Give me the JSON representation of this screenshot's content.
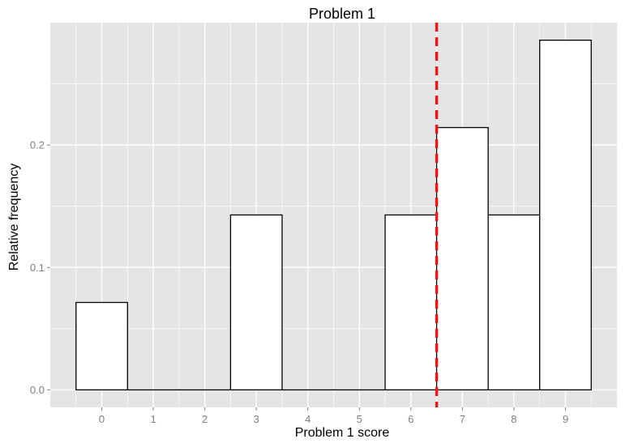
{
  "chart_data": {
    "type": "bar",
    "title": "Problem 1",
    "xlabel": "Problem 1 score",
    "ylabel": "Relative frequency",
    "categories": [
      "0",
      "1",
      "2",
      "3",
      "4",
      "5",
      "6",
      "7",
      "8",
      "9"
    ],
    "values": [
      0.0714,
      0,
      0,
      0.1429,
      0,
      0,
      0.1429,
      0.2143,
      0.1429,
      0.2857
    ],
    "yticks": [
      "0.0",
      "0.1",
      "0.2"
    ],
    "ytick_values": [
      0,
      0.1,
      0.2
    ],
    "xlim": [
      -1,
      10
    ],
    "ylim": [
      -0.0143,
      0.3
    ],
    "grid": true,
    "reference_line": {
      "x": 6.5,
      "style": "dashed",
      "color": "#e41a1c"
    },
    "colors": {
      "panel": "#e5e5e5",
      "grid": "#ffffff",
      "bar_fill": "#ffffff",
      "bar_stroke": "#000000"
    }
  }
}
